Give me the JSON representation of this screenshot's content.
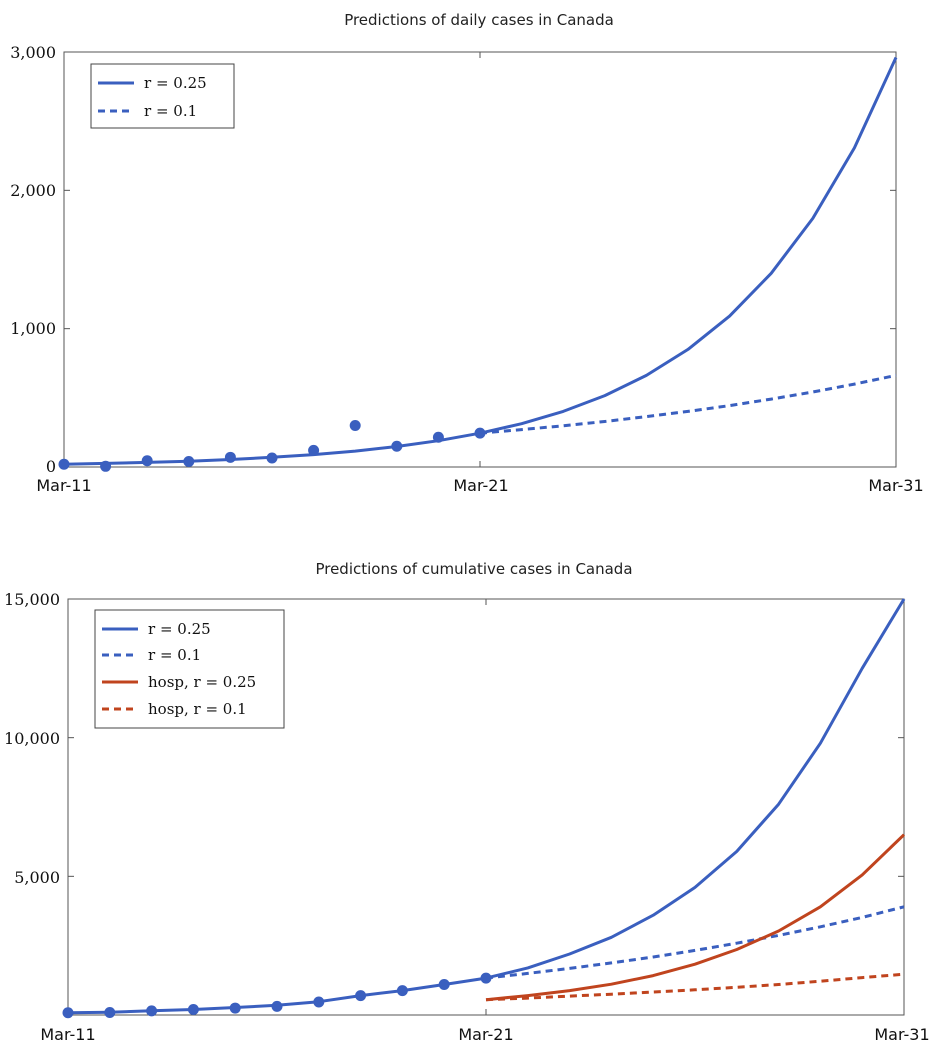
{
  "chart_data": [
    {
      "type": "line",
      "title": "Predictions of daily cases in Canada",
      "x_tick_labels": [
        "Mar-11",
        "Mar-21",
        "Mar-31"
      ],
      "y_tick_labels": [
        "0",
        "1,000",
        "2,000",
        "3,000"
      ],
      "ylim": [
        0,
        3000
      ],
      "xlim": [
        0,
        20
      ],
      "legend_position": "top-left",
      "grid": false,
      "colors": {
        "blue": "#3a5fbf"
      },
      "series": [
        {
          "name": "r = 0.25",
          "style": "solid",
          "color": "#3a5fbf",
          "x": [
            0,
            1,
            2,
            3,
            4,
            5,
            6,
            7,
            8,
            9,
            10,
            11,
            12,
            13,
            14,
            15,
            16,
            17,
            18,
            19,
            20
          ],
          "y": [
            20,
            26,
            33,
            42,
            54,
            70,
            90,
            115,
            148,
            190,
            244,
            313,
            402,
            516,
            662,
            850,
            1091,
            1400,
            1797,
            2307,
            2960
          ]
        },
        {
          "name": "r = 0.1",
          "style": "dashed",
          "color": "#3a5fbf",
          "x": [
            10,
            11,
            12,
            13,
            14,
            15,
            16,
            17,
            18,
            19,
            20
          ],
          "y": [
            244,
            270,
            298,
            329,
            364,
            402,
            444,
            491,
            542,
            599,
            662
          ]
        },
        {
          "name": "",
          "style": "points",
          "color": "#3a5fbf",
          "x": [
            0,
            1,
            2,
            3,
            4,
            5,
            6,
            7,
            8,
            9,
            10
          ],
          "y": [
            20,
            5,
            45,
            40,
            70,
            65,
            120,
            300,
            150,
            215,
            245
          ]
        }
      ]
    },
    {
      "type": "line",
      "title": "Predictions of cumulative cases in Canada",
      "x_tick_labels": [
        "Mar-11",
        "Mar-21",
        "Mar-31"
      ],
      "y_tick_labels": [
        "5,000",
        "10,000",
        "15,000"
      ],
      "ylim": [
        0,
        15000
      ],
      "xlim": [
        0,
        20
      ],
      "legend_position": "top-left",
      "grid": false,
      "colors": {
        "blue": "#3a5fbf",
        "red": "#c0441e"
      },
      "series": [
        {
          "name": "r = 0.25",
          "style": "solid",
          "color": "#3a5fbf",
          "x": [
            0,
            1,
            2,
            3,
            4,
            5,
            6,
            7,
            8,
            9,
            10,
            11,
            12,
            13,
            14,
            15,
            16,
            17,
            18,
            19,
            20
          ],
          "y": [
            80,
            100,
            150,
            200,
            270,
            350,
            480,
            700,
            880,
            1100,
            1330,
            1700,
            2200,
            2800,
            3600,
            4600,
            5900,
            7600,
            9800,
            12500,
            15000
          ]
        },
        {
          "name": "r = 0.1",
          "style": "dashed",
          "color": "#3a5fbf",
          "x": [
            10,
            11,
            12,
            13,
            14,
            15,
            16,
            17,
            18,
            19,
            20
          ],
          "y": [
            1330,
            1500,
            1680,
            1880,
            2090,
            2330,
            2590,
            2870,
            3180,
            3520,
            3900
          ]
        },
        {
          "name": "hosp, r = 0.25",
          "style": "solid",
          "color": "#c0441e",
          "x": [
            10,
            11,
            12,
            13,
            14,
            15,
            16,
            17,
            18,
            19,
            20
          ],
          "y": [
            550,
            700,
            880,
            1110,
            1420,
            1830,
            2360,
            3030,
            3900,
            5050,
            6500
          ]
        },
        {
          "name": "hosp, r = 0.1",
          "style": "dashed",
          "color": "#c0441e",
          "x": [
            10,
            11,
            12,
            13,
            14,
            15,
            16,
            17,
            18,
            19,
            20
          ],
          "y": [
            550,
            610,
            680,
            750,
            830,
            910,
            1000,
            1100,
            1220,
            1350,
            1470
          ]
        },
        {
          "name": "",
          "style": "points",
          "color": "#3a5fbf",
          "x": [
            0,
            1,
            2,
            3,
            4,
            5,
            6,
            7,
            8,
            9,
            10
          ],
          "y": [
            80,
            90,
            150,
            200,
            250,
            310,
            470,
            700,
            880,
            1100,
            1330
          ]
        }
      ]
    }
  ]
}
